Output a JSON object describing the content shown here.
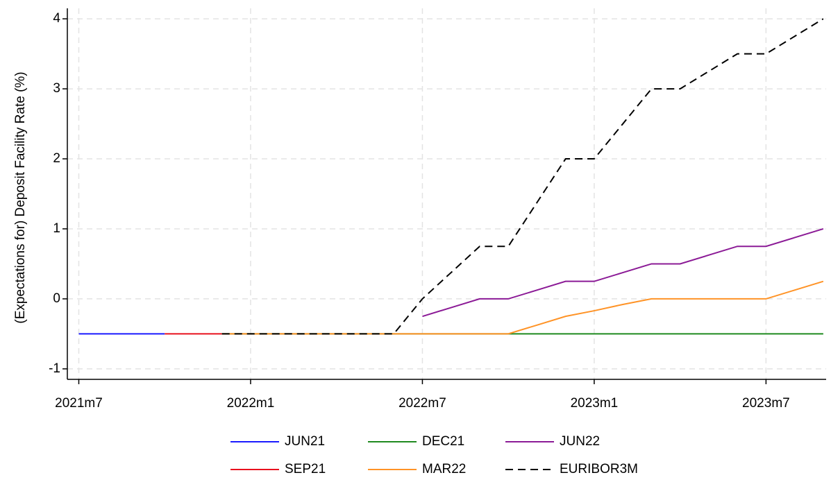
{
  "chart_data": {
    "type": "line",
    "y_label": "(Expectations for) Deposit Facility Rate (%)",
    "x": [
      738,
      739,
      740,
      741,
      742,
      743,
      744,
      745,
      746,
      747,
      748,
      749,
      750,
      751,
      752,
      753,
      754,
      755,
      756,
      757,
      758,
      759,
      760,
      761,
      762,
      763,
      764
    ],
    "xlim": [
      737.6,
      764.1
    ],
    "xticks": [
      {
        "value": 738,
        "label": "2021m7"
      },
      {
        "value": 744,
        "label": "2022m1"
      },
      {
        "value": 750,
        "label": "2022m7"
      },
      {
        "value": 756,
        "label": "2023m1"
      },
      {
        "value": 762,
        "label": "2023m7"
      }
    ],
    "ylim": [
      -1.15,
      4.15
    ],
    "yticks": [
      -1,
      0,
      1,
      2,
      3,
      4
    ],
    "grid": true,
    "legend": "bottom",
    "series": [
      {
        "name": "JUN21",
        "color": "#1a1aff",
        "dash": false,
        "values": [
          -0.5,
          -0.5,
          -0.5,
          -0.5,
          null,
          null,
          null,
          null,
          null,
          null,
          null,
          null,
          null,
          null,
          null,
          null,
          null,
          null,
          null,
          null,
          null,
          null,
          null,
          null,
          null,
          null,
          null
        ]
      },
      {
        "name": "SEP21",
        "color": "#e8101e",
        "dash": false,
        "values": [
          null,
          null,
          null,
          -0.5,
          -0.5,
          -0.5,
          null,
          null,
          null,
          null,
          null,
          null,
          null,
          null,
          null,
          null,
          null,
          null,
          null,
          null,
          null,
          null,
          null,
          null,
          null,
          null,
          null
        ]
      },
      {
        "name": "DEC21",
        "color": "#1f8a1f",
        "dash": false,
        "values": [
          null,
          null,
          null,
          null,
          null,
          -0.5,
          -0.5,
          -0.5,
          -0.5,
          -0.5,
          -0.5,
          -0.5,
          -0.5,
          -0.5,
          -0.5,
          -0.5,
          -0.5,
          -0.5,
          -0.5,
          -0.5,
          -0.5,
          -0.5,
          -0.5,
          -0.5,
          -0.5,
          -0.5,
          -0.5
        ]
      },
      {
        "name": "MAR22",
        "color": "#ff9326",
        "dash": false,
        "values": [
          null,
          null,
          null,
          null,
          null,
          -0.5,
          -0.5,
          -0.5,
          -0.5,
          -0.5,
          -0.5,
          -0.5,
          -0.5,
          -0.5,
          -0.5,
          -0.5,
          -0.375,
          -0.25,
          -0.17,
          -0.08,
          0,
          0,
          0,
          0,
          0,
          0.125,
          0.25
        ]
      },
      {
        "name": "JUN22",
        "color": "#8b1a96",
        "dash": false,
        "values": [
          null,
          null,
          null,
          null,
          null,
          null,
          null,
          null,
          null,
          null,
          null,
          null,
          -0.25,
          -0.125,
          0,
          0,
          0.125,
          0.25,
          0.25,
          0.375,
          0.5,
          0.5,
          0.625,
          0.75,
          0.75,
          0.875,
          1
        ]
      },
      {
        "name": "EURIBOR3M",
        "color": "#000000",
        "dash": true,
        "values": [
          null,
          null,
          null,
          null,
          null,
          -0.5,
          -0.5,
          -0.5,
          -0.5,
          -0.5,
          -0.5,
          -0.5,
          0,
          0.375,
          0.75,
          0.75,
          1.375,
          2,
          2,
          2.5,
          3,
          3,
          3.25,
          3.5,
          3.5,
          3.75,
          4
        ]
      }
    ]
  }
}
